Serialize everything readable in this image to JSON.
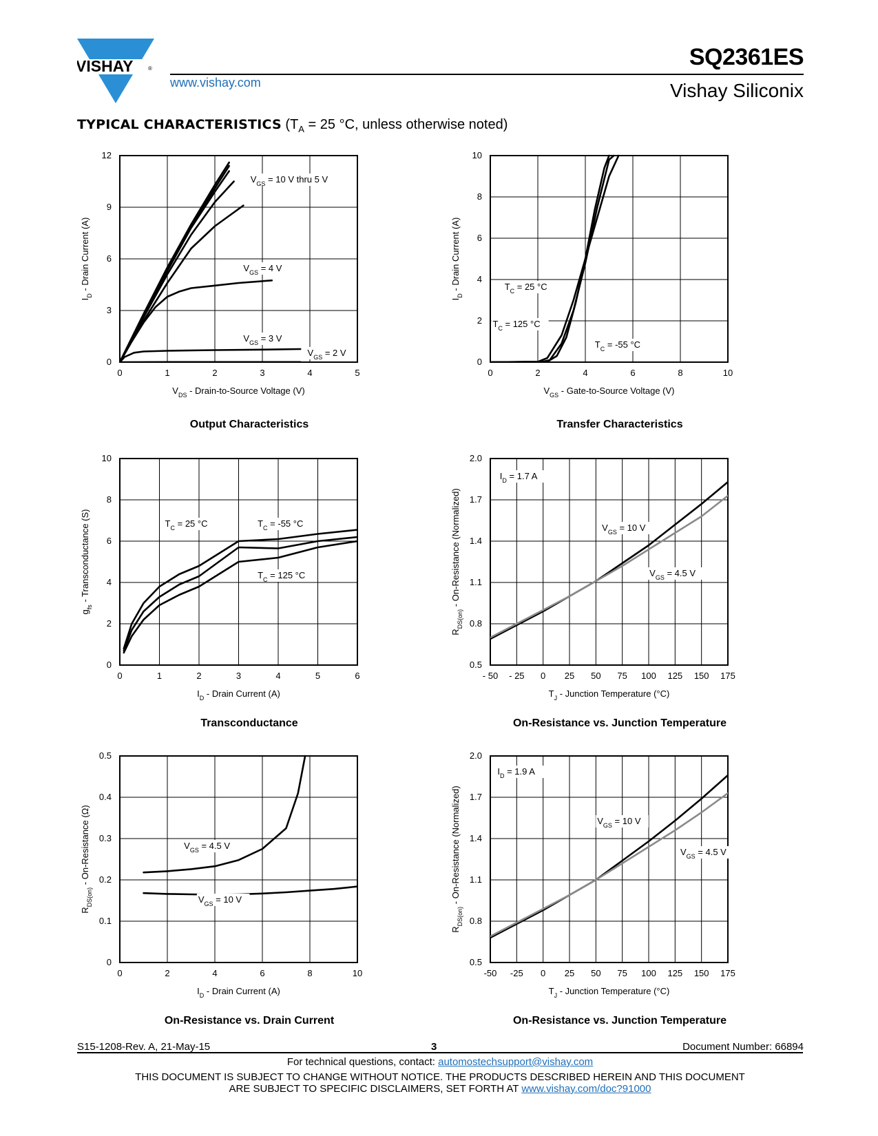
{
  "header": {
    "brand": "VISHAY",
    "website": "www.vishay.com",
    "part_number": "SQ2361ES",
    "company": "Vishay Siliconix"
  },
  "section": {
    "title_bold": "TYPICAL CHARACTERISTICS",
    "title_rest": " (T",
    "title_sub": "A",
    "title_end": " = 25 °C, unless otherwise noted)"
  },
  "colors": {
    "link": "#1f6fb8",
    "curve": "#000000",
    "curve_alt": "#8a8a8a",
    "logo": "#2b8fd6"
  },
  "chart_data": [
    {
      "type": "line",
      "title": "Output Characteristics",
      "xlabel": "V_DS - Drain-to-Source Voltage (V)",
      "ylabel": "I_D - Drain Current (A)",
      "xlim": [
        0,
        5
      ],
      "ylim": [
        0,
        12
      ],
      "xticks": [
        "0",
        "1",
        "2",
        "3",
        "4",
        "5"
      ],
      "yticks": [
        "0",
        "3",
        "6",
        "9",
        "12"
      ],
      "annotations": [
        "V_GS = 10 V thru 5 V",
        "V_GS = 4 V",
        "V_GS = 3 V",
        "V_GS = 2 V"
      ],
      "series": [
        {
          "name": "VGS=10V",
          "x": [
            0,
            0.5,
            1,
            1.5,
            2,
            2.3
          ],
          "y": [
            0,
            2.8,
            5.5,
            8.0,
            10.3,
            11.6
          ]
        },
        {
          "name": "VGS=8V",
          "x": [
            0,
            0.5,
            1,
            1.5,
            2,
            2.3
          ],
          "y": [
            0,
            2.75,
            5.4,
            7.9,
            10.1,
            11.4
          ]
        },
        {
          "name": "VGS=7V",
          "x": [
            0,
            0.5,
            1,
            1.5,
            2,
            2.3
          ],
          "y": [
            0,
            2.7,
            5.3,
            7.8,
            9.9,
            11.1
          ]
        },
        {
          "name": "VGS=6V",
          "x": [
            0,
            0.5,
            1,
            1.5,
            2,
            2.4
          ],
          "y": [
            0,
            2.6,
            5.1,
            7.4,
            9.3,
            10.5
          ]
        },
        {
          "name": "VGS=5V",
          "x": [
            0,
            0.5,
            1,
            1.5,
            2,
            2.6
          ],
          "y": [
            0,
            2.4,
            4.6,
            6.6,
            7.9,
            9.1
          ]
        },
        {
          "name": "VGS=4V",
          "x": [
            0,
            0.25,
            0.5,
            0.75,
            1,
            1.25,
            1.5,
            2,
            2.5,
            3.2
          ],
          "y": [
            0,
            1.2,
            2.3,
            3.2,
            3.8,
            4.1,
            4.3,
            4.45,
            4.6,
            4.75
          ]
        },
        {
          "name": "VGS=3V",
          "x": [
            0,
            0.1,
            0.3,
            0.5,
            1,
            2,
            3,
            3.8
          ],
          "y": [
            0,
            0.3,
            0.55,
            0.62,
            0.66,
            0.7,
            0.73,
            0.76
          ]
        },
        {
          "name": "VGS=2V",
          "x": [
            0,
            1,
            2,
            3,
            3.8
          ],
          "y": [
            0,
            0.01,
            0.01,
            0.01,
            0.01
          ]
        }
      ]
    },
    {
      "type": "line",
      "title": "Transfer Characteristics",
      "xlabel": "V_GS - Gate-to-Source Voltage (V)",
      "ylabel": "I_D - Drain Current (A)",
      "xlim": [
        0,
        10
      ],
      "ylim": [
        0,
        10
      ],
      "xticks": [
        "0",
        "2",
        "4",
        "6",
        "8",
        "10"
      ],
      "yticks": [
        "0",
        "2",
        "4",
        "6",
        "8",
        "10"
      ],
      "annotations": [
        "T_C = 25 °C",
        "T_C = 125 °C",
        "T_C = -55 °C"
      ],
      "series": [
        {
          "name": "TC=25C",
          "x": [
            0,
            2.2,
            2.5,
            3,
            3.5,
            4,
            4.5,
            5,
            5.2
          ],
          "y": [
            0,
            0.02,
            0.1,
            0.9,
            2.5,
            4.8,
            7.5,
            9.8,
            10
          ]
        },
        {
          "name": "TC=125C",
          "x": [
            0,
            2.0,
            2.4,
            3,
            3.5,
            4,
            4.5,
            5,
            5.4
          ],
          "y": [
            0,
            0.02,
            0.2,
            1.3,
            3.0,
            5.0,
            7.0,
            9.0,
            10
          ]
        },
        {
          "name": "TC=-55C",
          "x": [
            0,
            2.4,
            2.8,
            3.2,
            3.6,
            4,
            4.4,
            4.8,
            5
          ],
          "y": [
            0,
            0.02,
            0.3,
            1.2,
            2.9,
            5.0,
            7.4,
            9.4,
            10
          ]
        }
      ]
    },
    {
      "type": "line",
      "title": "Transconductance",
      "xlabel": "I_D - Drain Current (A)",
      "ylabel": "g_fs - Transconductance (S)",
      "xlim": [
        0,
        6
      ],
      "ylim": [
        0,
        10
      ],
      "xticks": [
        "0",
        "1",
        "2",
        "3",
        "4",
        "5",
        "6"
      ],
      "yticks": [
        "0",
        "2",
        "4",
        "6",
        "8",
        "10"
      ],
      "annotations": [
        "T_C = 25 °C",
        "T_C = -55 °C",
        "T_C = 125 °C"
      ],
      "series": [
        {
          "name": "TC=-55C",
          "x": [
            0.1,
            0.3,
            0.6,
            1,
            1.5,
            2,
            3,
            4,
            5,
            6
          ],
          "y": [
            0.8,
            2.0,
            3.0,
            3.8,
            4.4,
            4.8,
            6.0,
            6.1,
            6.35,
            6.55
          ]
        },
        {
          "name": "TC=25C",
          "x": [
            0.1,
            0.3,
            0.6,
            1,
            1.5,
            2,
            3,
            4,
            5,
            6
          ],
          "y": [
            0.7,
            1.7,
            2.6,
            3.3,
            3.9,
            4.3,
            5.7,
            5.65,
            6.0,
            6.2
          ]
        },
        {
          "name": "TC=125C",
          "x": [
            0.1,
            0.3,
            0.6,
            1,
            1.5,
            2,
            3,
            4,
            5,
            6
          ],
          "y": [
            0.6,
            1.4,
            2.2,
            2.9,
            3.4,
            3.8,
            5.0,
            5.2,
            5.7,
            6.0
          ]
        }
      ]
    },
    {
      "type": "line",
      "title": "On-Resistance vs. Junction Temperature",
      "xlabel": "T_J - Junction Temperature (°C)",
      "ylabel": "R_DS(on) - On-Resistance (Normalized)",
      "xlim": [
        -50,
        175
      ],
      "ylim": [
        0.5,
        2.0
      ],
      "xticks": [
        "- 50",
        "- 25",
        "0",
        "25",
        "50",
        "75",
        "100",
        "125",
        "150",
        "175"
      ],
      "yticks": [
        "0.5",
        "0.8",
        "1.1",
        "1.4",
        "1.7",
        "2.0"
      ],
      "annotations": [
        "I_D = 1.7 A",
        "V_GS = 10 V",
        "V_GS = 4.5 V"
      ],
      "series": [
        {
          "name": "VGS=10V",
          "x": [
            -50,
            -25,
            0,
            25,
            50,
            75,
            100,
            125,
            150,
            175
          ],
          "y": [
            0.69,
            0.79,
            0.89,
            1.0,
            1.11,
            1.24,
            1.37,
            1.52,
            1.67,
            1.83
          ]
        },
        {
          "name": "VGS=4.5V",
          "x": [
            -50,
            -25,
            0,
            25,
            50,
            75,
            100,
            125,
            150,
            175
          ],
          "y": [
            0.7,
            0.8,
            0.9,
            1.0,
            1.11,
            1.22,
            1.34,
            1.46,
            1.58,
            1.73
          ]
        }
      ]
    },
    {
      "type": "line",
      "title": "On-Resistance vs. Drain Current",
      "xlabel": "I_D - Drain Current (A)",
      "ylabel": "R_DS(on) - On-Resistance (Ω)",
      "xlim": [
        0,
        10
      ],
      "ylim": [
        0,
        0.5
      ],
      "xticks": [
        "0",
        "2",
        "4",
        "6",
        "8",
        "10"
      ],
      "yticks": [
        "0",
        "0.1",
        "0.2",
        "0.3",
        "0.4",
        "0.5"
      ],
      "annotations": [
        "V_GS = 4.5 V",
        "V_GS = 10 V"
      ],
      "series": [
        {
          "name": "VGS=4.5V",
          "x": [
            1,
            2,
            3,
            4,
            5,
            6,
            7,
            7.5,
            7.8
          ],
          "y": [
            0.218,
            0.221,
            0.226,
            0.233,
            0.248,
            0.275,
            0.325,
            0.41,
            0.5
          ]
        },
        {
          "name": "VGS=10V",
          "x": [
            1,
            2,
            3,
            4,
            5,
            6,
            7,
            8,
            9,
            10
          ],
          "y": [
            0.168,
            0.166,
            0.165,
            0.164,
            0.165,
            0.167,
            0.17,
            0.174,
            0.178,
            0.184
          ]
        }
      ]
    },
    {
      "type": "line",
      "title": "On-Resistance vs. Junction Temperature",
      "xlabel": "T_J - Junction Temperature (°C)",
      "ylabel": "R_DS(on) - On-Resistance (Normalized)",
      "xlim": [
        -50,
        175
      ],
      "ylim": [
        0.5,
        2.0
      ],
      "xticks": [
        "-50",
        "-25",
        "0",
        "25",
        "50",
        "75",
        "100",
        "125",
        "150",
        "175"
      ],
      "yticks": [
        "0.5",
        "0.8",
        "1.1",
        "1.4",
        "1.7",
        "2.0"
      ],
      "annotations": [
        "I_D = 1.9 A",
        "V_GS = 10 V",
        "V_GS = 4.5 V"
      ],
      "series": [
        {
          "name": "VGS=10V",
          "x": [
            -50,
            -25,
            0,
            25,
            50,
            75,
            100,
            125,
            150,
            175
          ],
          "y": [
            0.68,
            0.78,
            0.88,
            0.99,
            1.1,
            1.24,
            1.38,
            1.53,
            1.69,
            1.86
          ]
        },
        {
          "name": "VGS=4.5V",
          "x": [
            -50,
            -25,
            0,
            25,
            50,
            75,
            100,
            125,
            150,
            175
          ],
          "y": [
            0.69,
            0.79,
            0.89,
            0.99,
            1.1,
            1.22,
            1.34,
            1.46,
            1.59,
            1.73
          ]
        }
      ]
    }
  ],
  "footer": {
    "revision": "S15-1208-Rev. A, 21-May-15",
    "page": "3",
    "document_number": "Document Number: 66894",
    "questions_prefix": "For technical questions, contact: ",
    "questions_email": "automostechsupport@vishay.com",
    "disclaimer_line1": "THIS DOCUMENT IS SUBJECT TO CHANGE WITHOUT NOTICE. THE PRODUCTS DESCRIBED HEREIN AND THIS DOCUMENT",
    "disclaimer_line2_prefix": "ARE SUBJECT TO SPECIFIC DISCLAIMERS, SET FORTH AT ",
    "disclaimer_link": "www.vishay.com/doc?91000"
  }
}
